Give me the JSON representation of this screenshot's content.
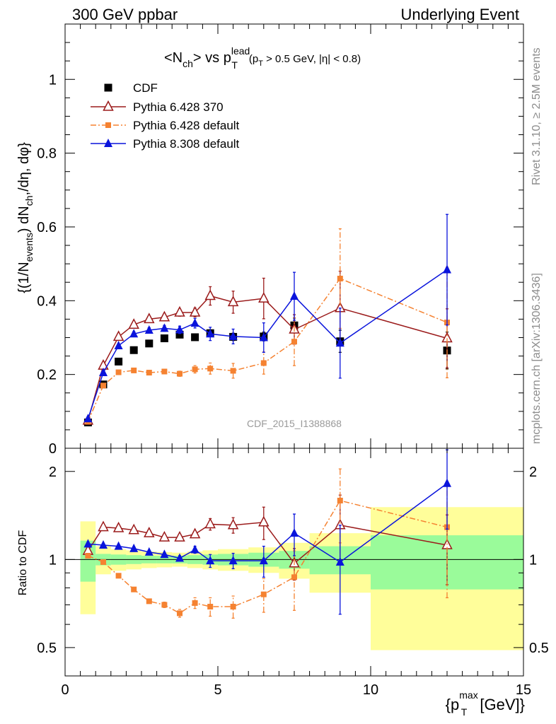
{
  "header": {
    "left": "300 GeV ppbar",
    "right": "Underlying Event"
  },
  "side_labels": {
    "rivet": "Rivet 3.1.10, ≥ 2.5M events",
    "mcplots": "mcplots.cern.ch [arXiv:1306.3436]"
  },
  "watermark": "CDF_2015_I1388868",
  "colors": {
    "cdf": "#000000",
    "pythia6_370": "#9b1b1b",
    "pythia6_default": "#f58231",
    "pythia8_default": "#0a14dc",
    "band_green": "#9afb9a",
    "band_yellow": "#fffe9a"
  },
  "chart_data": [
    {
      "type": "scatter",
      "panel": "main",
      "title": "<Nch> vs pT lead (pT > 0.5 GeV, |η| < 0.8)",
      "title_parts": {
        "open": "<N",
        "ch_sub": "ch",
        "vs": "> vs p",
        "lead_sup": "lead",
        "t_sub": "T",
        "cut": "(p",
        "cut_t": "T",
        "cut_rest": " > 0.5 GeV, |η| < 0.8)"
      },
      "ylabel": "{(1/N_events) dN_ch,/dη, dφ}",
      "ylabel_parts": {
        "a": "{(1/N",
        "b": "events",
        "c": ") dN",
        "d": "ch",
        "e": ",/dη, dφ}"
      },
      "xlabel": "{p_T^max [GeV]}",
      "xlim": [
        0,
        15
      ],
      "ylim": [
        0,
        1.15
      ],
      "yticks": [
        0,
        0.2,
        0.4,
        0.6,
        0.8,
        1
      ],
      "ytick_labels": [
        "0",
        "0.2",
        "0.4",
        "0.6",
        "0.8",
        "1"
      ],
      "legend_position": "top-left",
      "series": [
        {
          "name": "CDF",
          "key": "cdf",
          "x": [
            0.75,
            1.25,
            1.75,
            2.25,
            2.75,
            3.25,
            3.75,
            4.25,
            4.75,
            5.5,
            6.5,
            7.5,
            9.0,
            12.5
          ],
          "y": [
            0.07,
            0.173,
            0.235,
            0.266,
            0.284,
            0.298,
            0.308,
            0.301,
            0.312,
            0.302,
            0.303,
            0.333,
            0.29,
            0.265
          ],
          "err": [
            0.004,
            0.005,
            0.005,
            0.006,
            0.006,
            0.006,
            0.007,
            0.008,
            0.009,
            0.01,
            0.012,
            0.02,
            0.03,
            0.05
          ]
        },
        {
          "name": "Pythia 6.428 370",
          "key": "pythia6_370",
          "x": [
            0.75,
            1.25,
            1.75,
            2.25,
            2.75,
            3.25,
            3.75,
            4.25,
            4.75,
            5.5,
            6.5,
            7.5,
            9.0,
            12.5
          ],
          "y": [
            0.075,
            0.224,
            0.302,
            0.335,
            0.35,
            0.355,
            0.368,
            0.368,
            0.413,
            0.396,
            0.406,
            0.322,
            0.38,
            0.298
          ],
          "err": [
            0.003,
            0.004,
            0.005,
            0.006,
            0.007,
            0.008,
            0.01,
            0.012,
            0.025,
            0.03,
            0.055,
            0.04,
            0.1,
            0.08
          ]
        },
        {
          "name": "Pythia 6.428 default",
          "key": "pythia6_default",
          "x": [
            0.75,
            1.25,
            1.75,
            2.25,
            2.75,
            3.25,
            3.75,
            4.25,
            4.75,
            5.5,
            6.5,
            7.5,
            9.0,
            12.5
          ],
          "y": [
            0.072,
            0.17,
            0.206,
            0.211,
            0.205,
            0.208,
            0.202,
            0.214,
            0.216,
            0.21,
            0.231,
            0.289,
            0.46,
            0.341
          ],
          "err": [
            0.003,
            0.004,
            0.004,
            0.005,
            0.005,
            0.006,
            0.007,
            0.01,
            0.015,
            0.02,
            0.03,
            0.065,
            0.135,
            0.15
          ]
        },
        {
          "name": "Pythia 8.308 default",
          "key": "pythia8_default",
          "x": [
            0.75,
            1.25,
            1.75,
            2.25,
            2.75,
            3.25,
            3.75,
            4.25,
            4.75,
            5.5,
            6.5,
            7.5,
            9.0,
            12.5
          ],
          "y": [
            0.08,
            0.205,
            0.278,
            0.31,
            0.32,
            0.325,
            0.321,
            0.339,
            0.31,
            0.303,
            0.3,
            0.412,
            0.285,
            0.484
          ],
          "err": [
            0.003,
            0.004,
            0.005,
            0.006,
            0.007,
            0.008,
            0.01,
            0.013,
            0.018,
            0.02,
            0.04,
            0.065,
            0.095,
            0.15
          ]
        }
      ]
    },
    {
      "type": "scatter",
      "panel": "ratio",
      "ylabel": "Ratio to CDF",
      "xlabel": "{p_T^max [GeV]}",
      "xlabel_parts": {
        "a": "{p",
        "t": "T",
        "max": "max",
        "b": " [GeV]}"
      },
      "xlim": [
        0,
        15
      ],
      "ylim": [
        0.4,
        2.4
      ],
      "log_y": true,
      "xticks": [
        0,
        5,
        10,
        15
      ],
      "xtick_labels": [
        "0",
        "5",
        "10",
        "15"
      ],
      "yticks": [
        0.5,
        1,
        2
      ],
      "ytick_labels": [
        "0.5",
        "1",
        "2"
      ],
      "reference_line": 1,
      "bands": {
        "edges": [
          0.5,
          1.0,
          1.5,
          2.0,
          2.5,
          3.0,
          3.5,
          4.0,
          4.5,
          5.0,
          6.0,
          7.0,
          8.0,
          10.0,
          15.0
        ],
        "green_lo": [
          0.84,
          0.955,
          0.96,
          0.965,
          0.97,
          0.97,
          0.97,
          0.965,
          0.96,
          0.955,
          0.945,
          0.93,
          0.89,
          0.79
        ],
        "green_hi": [
          1.16,
          1.045,
          1.04,
          1.035,
          1.03,
          1.03,
          1.03,
          1.035,
          1.04,
          1.045,
          1.055,
          1.07,
          1.11,
          1.21
        ],
        "yellow_lo": [
          0.65,
          0.89,
          0.915,
          0.925,
          0.935,
          0.94,
          0.945,
          0.935,
          0.925,
          0.915,
          0.9,
          0.86,
          0.77,
          0.49
        ],
        "yellow_hi": [
          1.35,
          1.11,
          1.085,
          1.075,
          1.065,
          1.06,
          1.055,
          1.065,
          1.075,
          1.085,
          1.1,
          1.14,
          1.23,
          1.51
        ]
      },
      "series": [
        {
          "name": "Pythia 6.428 370",
          "key": "pythia6_370",
          "x": [
            0.75,
            1.25,
            1.75,
            2.25,
            2.75,
            3.25,
            3.75,
            4.25,
            4.75,
            5.5,
            6.5,
            7.5,
            9.0,
            12.5
          ],
          "y": [
            1.07,
            1.29,
            1.28,
            1.26,
            1.23,
            1.19,
            1.19,
            1.22,
            1.32,
            1.31,
            1.34,
            0.97,
            1.31,
            1.12
          ],
          "err": [
            0.005,
            0.01,
            0.01,
            0.01,
            0.01,
            0.01,
            0.02,
            0.03,
            0.06,
            0.08,
            0.17,
            0.12,
            0.35,
            0.3
          ]
        },
        {
          "name": "Pythia 6.428 default",
          "key": "pythia6_default",
          "x": [
            0.75,
            1.25,
            1.75,
            2.25,
            2.75,
            3.25,
            3.75,
            4.25,
            4.75,
            5.5,
            6.5,
            7.5,
            9.0,
            12.5
          ],
          "y": [
            1.03,
            0.98,
            0.88,
            0.79,
            0.72,
            0.7,
            0.655,
            0.71,
            0.69,
            0.69,
            0.76,
            0.87,
            1.59,
            1.29
          ],
          "err": [
            0.005,
            0.01,
            0.01,
            0.01,
            0.01,
            0.015,
            0.02,
            0.03,
            0.05,
            0.06,
            0.1,
            0.2,
            0.45,
            0.55
          ]
        },
        {
          "name": "Pythia 8.308 default",
          "key": "pythia8_default",
          "x": [
            0.75,
            1.25,
            1.75,
            2.25,
            2.75,
            3.25,
            3.75,
            4.25,
            4.75,
            5.5,
            6.5,
            7.5,
            9.0,
            12.5
          ],
          "y": [
            1.13,
            1.12,
            1.11,
            1.09,
            1.06,
            1.04,
            1.01,
            1.08,
            0.99,
            0.99,
            0.99,
            1.23,
            0.98,
            1.82
          ],
          "err": [
            0.005,
            0.01,
            0.01,
            0.01,
            0.01,
            0.015,
            0.02,
            0.03,
            0.05,
            0.06,
            0.12,
            0.2,
            0.33,
            0.55
          ]
        }
      ]
    }
  ]
}
